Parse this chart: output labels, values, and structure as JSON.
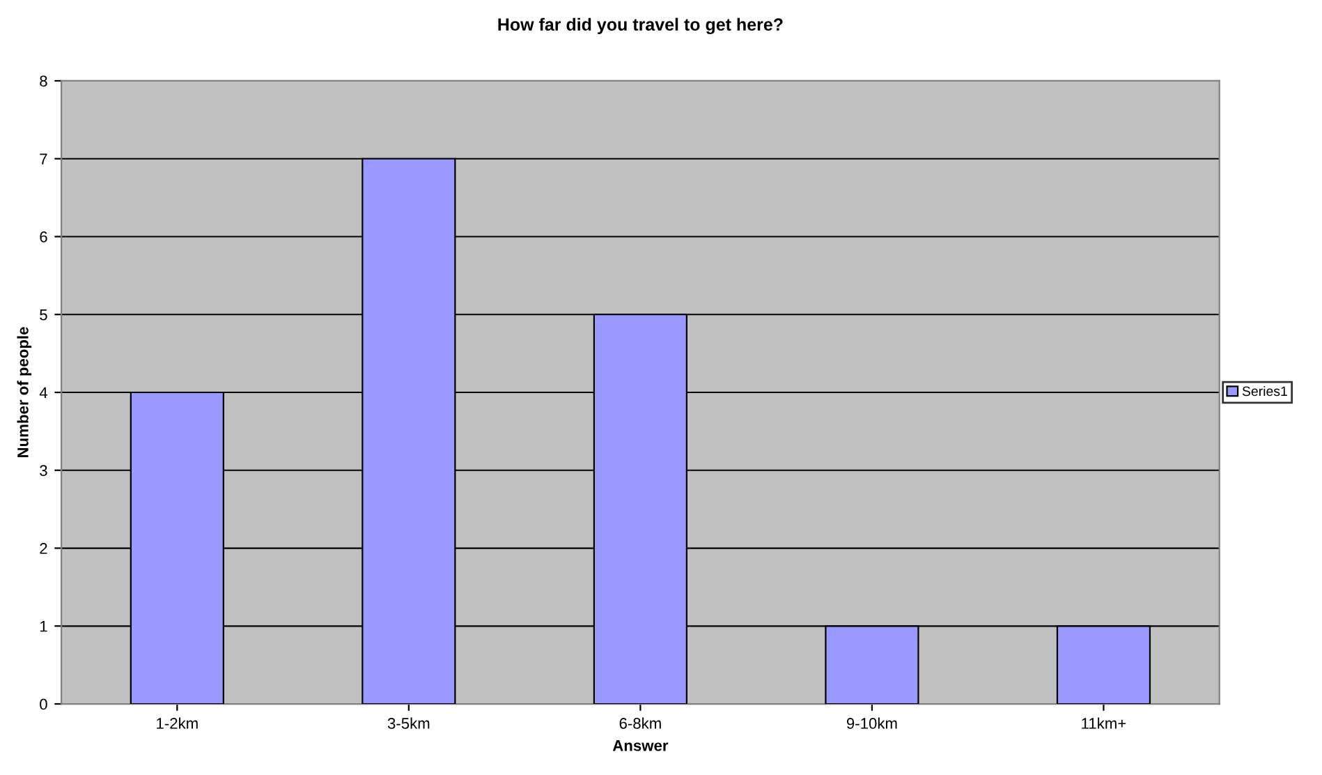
{
  "chart_data": {
    "type": "bar",
    "title": "How far did you travel to get here?",
    "xlabel": "Answer",
    "ylabel": "Number of people",
    "categories": [
      "1-2km",
      "3-5km",
      "6-8km",
      "9-10km",
      "11km+"
    ],
    "series": [
      {
        "name": "Series1",
        "color": "#9999ff",
        "values": [
          4,
          7,
          5,
          1,
          1
        ]
      }
    ],
    "ylim": [
      0,
      8
    ],
    "yticks": [
      0,
      1,
      2,
      3,
      4,
      5,
      6,
      7,
      8
    ],
    "grid": "y",
    "legend": "right"
  }
}
